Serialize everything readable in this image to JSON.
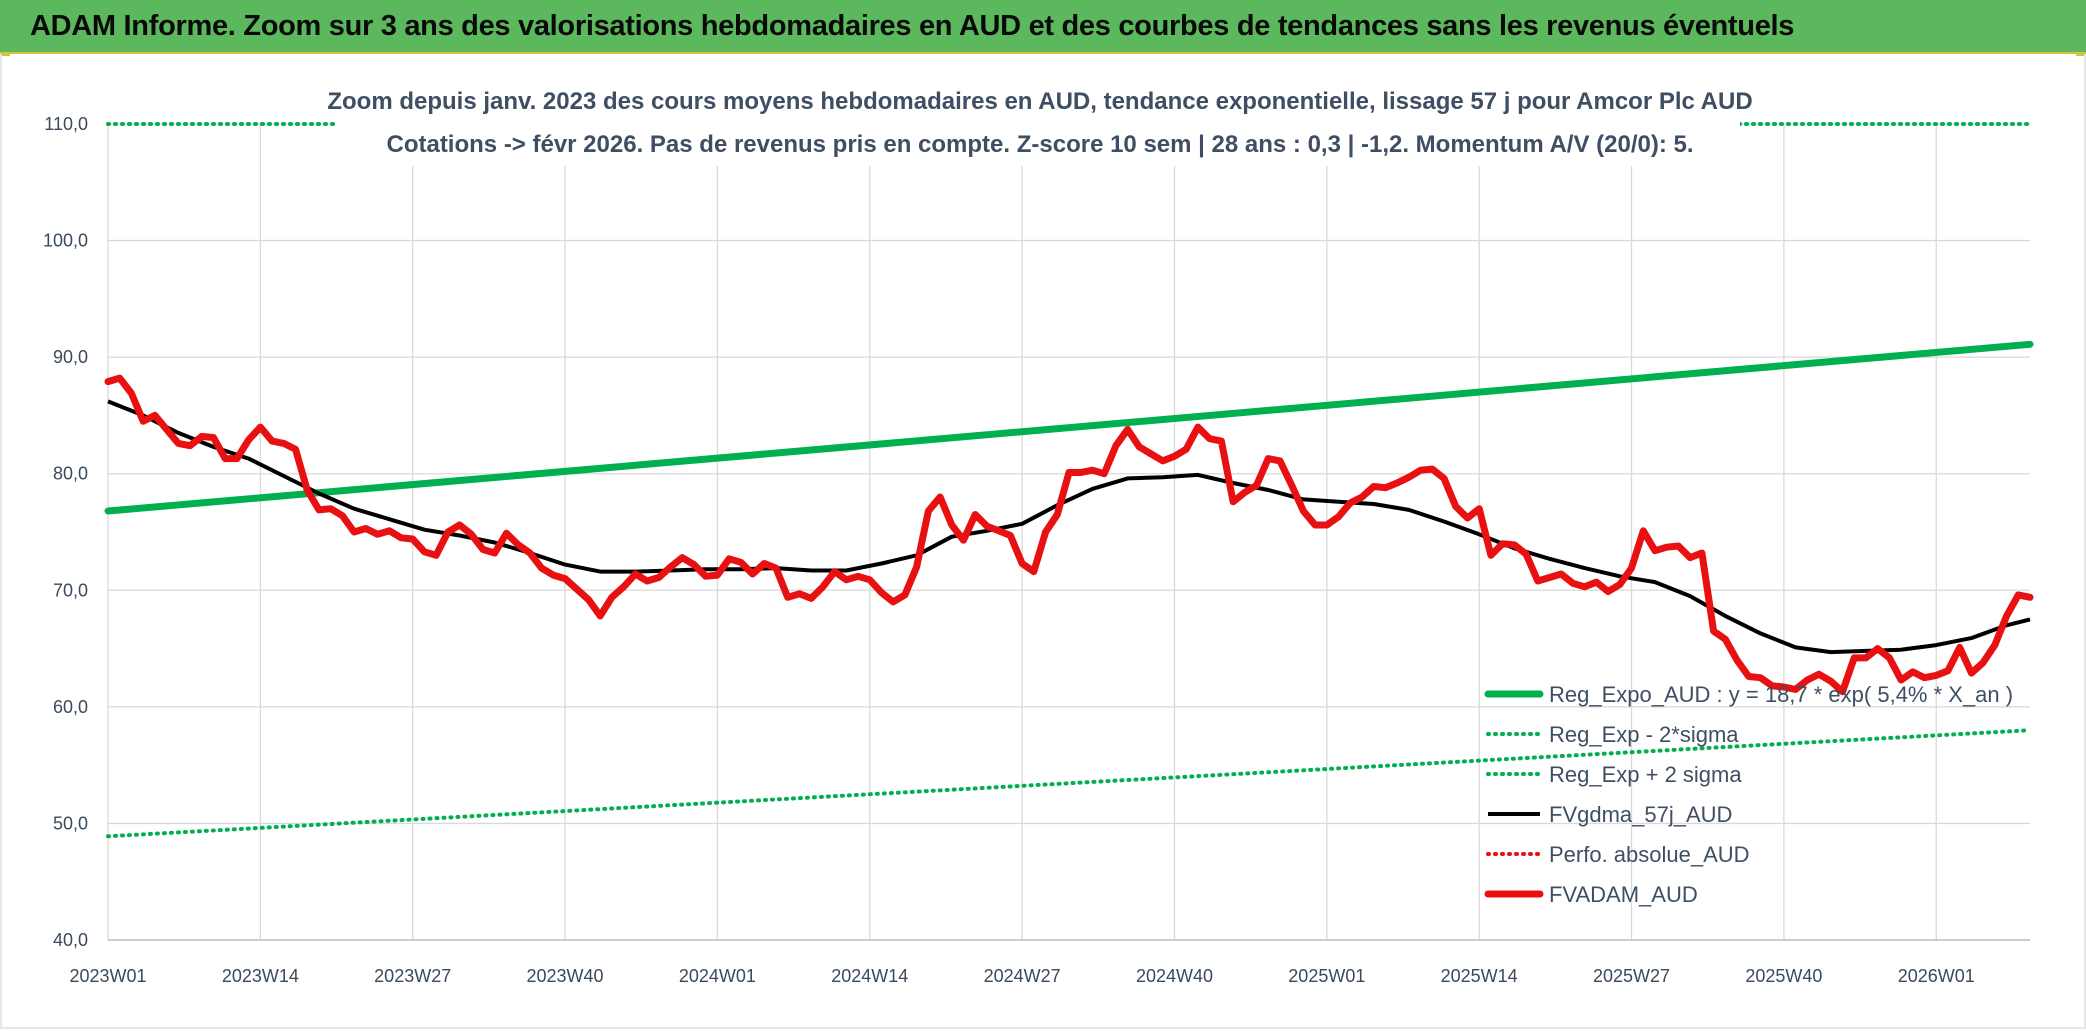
{
  "header": {
    "title": "ADAM Informe. Zoom sur 3 ans des valorisations hebdomadaires en AUD et des courbes de tendances sans les revenus éventuels"
  },
  "colors": {
    "green": "#00b050",
    "black": "#000000",
    "red": "#e81010",
    "grid": "#d9d9d9",
    "axis_text": "#3a4a5c"
  },
  "chart_data": {
    "type": "line",
    "title": "Zoom depuis janv. 2023 des cours moyens hebdomadaires en AUD, tendance exponentielle, lissage 57 j pour Amcor Plc AUD",
    "subtitle": "Cotations -> févr 2026. Pas de revenus pris en compte. Z-score 10 sem | 28 ans : 0,3 | -1,2. Momentum A/V (20/0): 5.",
    "ylim": [
      40,
      110
    ],
    "yticks": [
      "40,0",
      "50,0",
      "60,0",
      "70,0",
      "80,0",
      "90,0",
      "100,0",
      "110,0"
    ],
    "ytick_values": [
      40,
      50,
      60,
      70,
      80,
      90,
      100,
      110
    ],
    "xticks": [
      "2023W01",
      "2023W14",
      "2023W27",
      "2023W40",
      "2024W01",
      "2024W14",
      "2024W27",
      "2024W40",
      "2025W01",
      "2025W14",
      "2025W27",
      "2025W40",
      "2026W01"
    ],
    "xtick_weeks": [
      0,
      13,
      26,
      39,
      52,
      65,
      78,
      91,
      104,
      117,
      130,
      143,
      156
    ],
    "x_range_weeks": [
      0,
      164
    ],
    "legend": {
      "placement": "bottom-right"
    },
    "series": [
      {
        "name": "Reg_Expo_AUD : y = 18,7 * exp( 5,4% *  X_an )",
        "color": "#00b050",
        "style": "solid-thick",
        "start": [
          0,
          76.8
        ],
        "end": [
          164,
          91.1
        ]
      },
      {
        "name": "Reg_Exp - 2*sigma",
        "color": "#00b050",
        "style": "dotted",
        "start": [
          0,
          48.9
        ],
        "end": [
          164,
          58.0
        ]
      },
      {
        "name": "Reg_Exp + 2 sigma",
        "color": "#00b050",
        "style": "dotted",
        "start": [
          0,
          110.0
        ],
        "end": [
          164,
          110.0
        ]
      },
      {
        "name": "FVgdma_57j_AUD",
        "color": "#000000",
        "style": "solid",
        "points": [
          [
            0,
            86.2
          ],
          [
            3,
            85.0
          ],
          [
            6,
            83.5
          ],
          [
            9,
            82.3
          ],
          [
            12,
            81.3
          ],
          [
            15,
            79.8
          ],
          [
            18,
            78.3
          ],
          [
            21,
            77.0
          ],
          [
            24,
            76.1
          ],
          [
            27,
            75.2
          ],
          [
            30,
            74.7
          ],
          [
            33,
            74.1
          ],
          [
            36,
            73.2
          ],
          [
            39,
            72.2
          ],
          [
            42,
            71.6
          ],
          [
            45,
            71.6
          ],
          [
            48,
            71.7
          ],
          [
            51,
            71.8
          ],
          [
            54,
            71.8
          ],
          [
            57,
            71.9
          ],
          [
            60,
            71.7
          ],
          [
            63,
            71.7
          ],
          [
            66,
            72.3
          ],
          [
            69,
            73.0
          ],
          [
            72,
            74.6
          ],
          [
            75,
            75.1
          ],
          [
            78,
            75.7
          ],
          [
            81,
            77.3
          ],
          [
            84,
            78.7
          ],
          [
            87,
            79.6
          ],
          [
            90,
            79.7
          ],
          [
            93,
            79.9
          ],
          [
            96,
            79.2
          ],
          [
            99,
            78.6
          ],
          [
            102,
            77.8
          ],
          [
            105,
            77.6
          ],
          [
            108,
            77.4
          ],
          [
            111,
            76.9
          ],
          [
            114,
            75.9
          ],
          [
            117,
            74.8
          ],
          [
            120,
            73.6
          ],
          [
            123,
            72.7
          ],
          [
            126,
            71.9
          ],
          [
            129,
            71.2
          ],
          [
            132,
            70.7
          ],
          [
            135,
            69.5
          ],
          [
            138,
            67.8
          ],
          [
            141,
            66.3
          ],
          [
            144,
            65.1
          ],
          [
            147,
            64.7
          ],
          [
            150,
            64.8
          ],
          [
            153,
            64.9
          ],
          [
            156,
            65.3
          ],
          [
            159,
            65.9
          ],
          [
            162,
            67.0
          ],
          [
            164,
            67.5
          ]
        ]
      },
      {
        "name": "Perfo. absolue_AUD",
        "color": "#e81010",
        "style": "dotted"
      },
      {
        "name": "FVADAM_AUD",
        "color": "#e81010",
        "style": "solid-thick",
        "points": [
          [
            0,
            87.9
          ],
          [
            1,
            88.2
          ],
          [
            2,
            86.9
          ],
          [
            3,
            84.5
          ],
          [
            4,
            85.0
          ],
          [
            5,
            83.8
          ],
          [
            6,
            82.6
          ],
          [
            7,
            82.4
          ],
          [
            8,
            83.2
          ],
          [
            9,
            83.1
          ],
          [
            10,
            81.3
          ],
          [
            11,
            81.3
          ],
          [
            12,
            82.9
          ],
          [
            13,
            84.0
          ],
          [
            14,
            82.8
          ],
          [
            15,
            82.6
          ],
          [
            16,
            82.1
          ],
          [
            17,
            78.6
          ],
          [
            18,
            76.9
          ],
          [
            19,
            77.0
          ],
          [
            20,
            76.4
          ],
          [
            21,
            75.0
          ],
          [
            22,
            75.3
          ],
          [
            23,
            74.8
          ],
          [
            24,
            75.1
          ],
          [
            25,
            74.5
          ],
          [
            26,
            74.4
          ],
          [
            27,
            73.3
          ],
          [
            28,
            73.0
          ],
          [
            29,
            75.0
          ],
          [
            30,
            75.6
          ],
          [
            31,
            74.8
          ],
          [
            32,
            73.5
          ],
          [
            33,
            73.2
          ],
          [
            34,
            74.9
          ],
          [
            35,
            73.9
          ],
          [
            36,
            73.2
          ],
          [
            37,
            71.9
          ],
          [
            38,
            71.3
          ],
          [
            39,
            71.0
          ],
          [
            40,
            70.1
          ],
          [
            41,
            69.2
          ],
          [
            42,
            67.8
          ],
          [
            43,
            69.4
          ],
          [
            44,
            70.3
          ],
          [
            45,
            71.4
          ],
          [
            46,
            70.8
          ],
          [
            47,
            71.1
          ],
          [
            48,
            72.0
          ],
          [
            49,
            72.8
          ],
          [
            50,
            72.2
          ],
          [
            51,
            71.2
          ],
          [
            52,
            71.3
          ],
          [
            53,
            72.7
          ],
          [
            54,
            72.4
          ],
          [
            55,
            71.4
          ],
          [
            56,
            72.3
          ],
          [
            57,
            71.9
          ],
          [
            58,
            69.4
          ],
          [
            59,
            69.7
          ],
          [
            60,
            69.3
          ],
          [
            61,
            70.3
          ],
          [
            62,
            71.6
          ],
          [
            63,
            70.9
          ],
          [
            64,
            71.2
          ],
          [
            65,
            70.9
          ],
          [
            66,
            69.8
          ],
          [
            67,
            69.0
          ],
          [
            68,
            69.6
          ],
          [
            69,
            72.0
          ],
          [
            70,
            76.8
          ],
          [
            71,
            78.0
          ],
          [
            72,
            75.6
          ],
          [
            73,
            74.3
          ],
          [
            74,
            76.5
          ],
          [
            75,
            75.5
          ],
          [
            76,
            75.1
          ],
          [
            77,
            74.7
          ],
          [
            78,
            72.3
          ],
          [
            79,
            71.6
          ],
          [
            80,
            75.0
          ],
          [
            81,
            76.5
          ],
          [
            82,
            80.1
          ],
          [
            83,
            80.1
          ],
          [
            84,
            80.3
          ],
          [
            85,
            80.0
          ],
          [
            86,
            82.4
          ],
          [
            87,
            83.8
          ],
          [
            88,
            82.3
          ],
          [
            89,
            81.7
          ],
          [
            90,
            81.1
          ],
          [
            91,
            81.5
          ],
          [
            92,
            82.1
          ],
          [
            93,
            84.0
          ],
          [
            94,
            83.0
          ],
          [
            95,
            82.8
          ],
          [
            96,
            77.6
          ],
          [
            97,
            78.4
          ],
          [
            98,
            79.0
          ],
          [
            99,
            81.3
          ],
          [
            100,
            81.1
          ],
          [
            101,
            79.0
          ],
          [
            102,
            76.8
          ],
          [
            103,
            75.6
          ],
          [
            104,
            75.6
          ],
          [
            105,
            76.3
          ],
          [
            106,
            77.5
          ],
          [
            107,
            78.0
          ],
          [
            108,
            78.9
          ],
          [
            109,
            78.8
          ],
          [
            110,
            79.2
          ],
          [
            111,
            79.7
          ],
          [
            112,
            80.3
          ],
          [
            113,
            80.4
          ],
          [
            114,
            79.6
          ],
          [
            115,
            77.2
          ],
          [
            116,
            76.2
          ],
          [
            117,
            77.0
          ],
          [
            118,
            73.0
          ],
          [
            119,
            74.0
          ],
          [
            120,
            73.9
          ],
          [
            121,
            73.1
          ],
          [
            122,
            70.8
          ],
          [
            123,
            71.1
          ],
          [
            124,
            71.4
          ],
          [
            125,
            70.6
          ],
          [
            126,
            70.3
          ],
          [
            127,
            70.7
          ],
          [
            128,
            69.9
          ],
          [
            129,
            70.5
          ],
          [
            130,
            71.9
          ],
          [
            131,
            75.1
          ],
          [
            132,
            73.4
          ],
          [
            133,
            73.7
          ],
          [
            134,
            73.8
          ],
          [
            135,
            72.8
          ],
          [
            136,
            73.2
          ],
          [
            137,
            66.5
          ],
          [
            138,
            65.8
          ],
          [
            139,
            64.0
          ],
          [
            140,
            62.6
          ],
          [
            141,
            62.5
          ],
          [
            142,
            61.8
          ],
          [
            143,
            61.7
          ],
          [
            144,
            61.5
          ],
          [
            145,
            62.3
          ],
          [
            146,
            62.8
          ],
          [
            147,
            62.2
          ],
          [
            148,
            61.3
          ],
          [
            149,
            64.2
          ],
          [
            150,
            64.2
          ],
          [
            151,
            65.0
          ],
          [
            152,
            64.2
          ],
          [
            153,
            62.3
          ],
          [
            154,
            63.0
          ],
          [
            155,
            62.5
          ],
          [
            156,
            62.7
          ],
          [
            157,
            63.1
          ],
          [
            158,
            65.1
          ],
          [
            159,
            62.9
          ],
          [
            160,
            63.8
          ],
          [
            161,
            65.3
          ],
          [
            162,
            67.8
          ],
          [
            163,
            69.6
          ],
          [
            164,
            69.4
          ]
        ]
      }
    ]
  }
}
